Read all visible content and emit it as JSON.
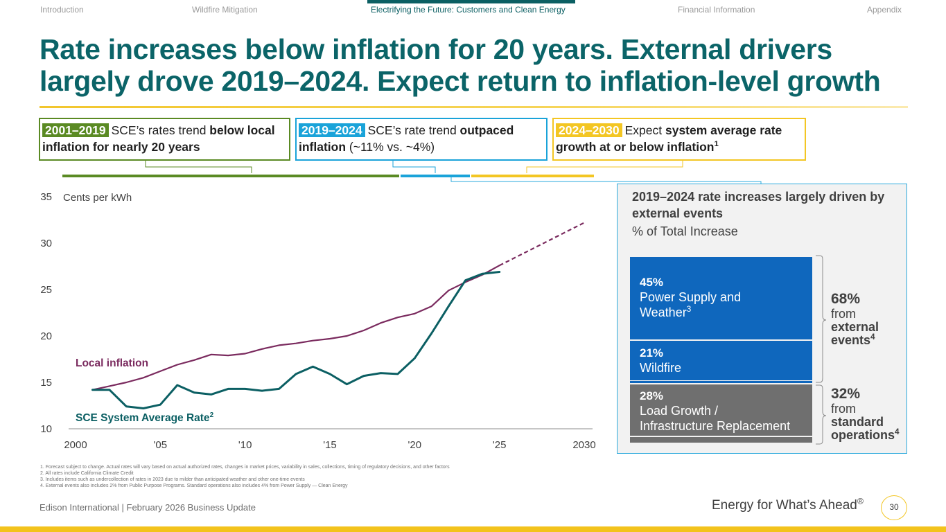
{
  "nav": {
    "items": [
      "Introduction",
      "Wildfire Mitigation",
      "Electrifying the Future: Customers and Clean Energy",
      "Financial Information",
      "Appendix"
    ],
    "active_index": 2
  },
  "title": {
    "line1": "Rate increases below inflation for 20 years. External drivers",
    "line2": "largely drove 2019–2024. Expect return to inflation-level growth"
  },
  "periods": [
    {
      "tag": "2001–2019",
      "pre": "SCE’s rates trend ",
      "bold": "below local inflation for nearly 20 years",
      "post": "",
      "color": "#5a8a23"
    },
    {
      "tag": "2019–2024",
      "pre": "SCE’s rate trend ",
      "bold": "outpaced inflation",
      "post": " (~11% vs. ~4%)",
      "color": "#1aa3d9"
    },
    {
      "tag": "2024–2030",
      "pre": "Expect ",
      "bold": "system average rate growth at or below inflation",
      "sup": "1",
      "color": "#f3c623"
    }
  ],
  "chart_data": {
    "type": "line",
    "ylabel": "Cents per kWh",
    "xlabel": "",
    "ylim": [
      10,
      35
    ],
    "xlim": [
      2000,
      2030
    ],
    "y_ticks": [
      10,
      15,
      20,
      25,
      30,
      35
    ],
    "x_ticks": [
      2000,
      2005,
      2010,
      2015,
      2020,
      2025,
      2030
    ],
    "x_tick_labels": [
      "2000",
      "'05",
      "'10",
      "'15",
      "'20",
      "'25",
      "2030"
    ],
    "series": [
      {
        "name": "Local inflation",
        "color": "#7a2a5e",
        "x": [
          2001,
          2002,
          2003,
          2004,
          2005,
          2006,
          2007,
          2008,
          2009,
          2010,
          2011,
          2012,
          2013,
          2014,
          2015,
          2016,
          2017,
          2018,
          2019,
          2020,
          2021,
          2022,
          2023,
          2024,
          2025
        ],
        "values": [
          14.2,
          14.6,
          15.0,
          15.5,
          16.2,
          16.9,
          17.4,
          18.0,
          17.9,
          18.1,
          18.6,
          19.0,
          19.2,
          19.5,
          19.7,
          20.0,
          20.6,
          21.4,
          22.0,
          22.4,
          23.2,
          24.9,
          25.8,
          26.6,
          27.6
        ]
      },
      {
        "name": "Local inflation forecast",
        "color": "#7a2a5e",
        "dashed": true,
        "x": [
          2025,
          2030
        ],
        "values": [
          27.6,
          32.2
        ]
      },
      {
        "name": "SCE System Average Rate",
        "sup": "2",
        "color": "#0b5f63",
        "x": [
          2001,
          2002,
          2003,
          2004,
          2005,
          2006,
          2007,
          2008,
          2009,
          2010,
          2011,
          2012,
          2013,
          2014,
          2015,
          2016,
          2017,
          2018,
          2019,
          2020,
          2021,
          2022,
          2023,
          2024,
          2025
        ],
        "values": [
          14.2,
          14.2,
          12.4,
          12.2,
          12.6,
          14.7,
          13.9,
          13.7,
          14.3,
          14.3,
          14.1,
          14.3,
          15.9,
          16.7,
          15.9,
          14.8,
          15.7,
          16.0,
          15.9,
          17.6,
          20.3,
          23.2,
          26.0,
          26.7,
          26.9
        ]
      }
    ],
    "annotations": [
      "Local inflation",
      "SCE System Average Rate"
    ]
  },
  "panel": {
    "title": "2019–2024 rate increases largely driven by external events",
    "subtitle": "% of Total Increase",
    "segments": [
      {
        "pct": "45%",
        "label1": "Power Supply and",
        "label2": "Weather",
        "sup": "3",
        "value": 45
      },
      {
        "pct": "21%",
        "label1": "Wildfire",
        "value": 21
      },
      {
        "pct": "28%",
        "label1": "Load Growth /",
        "label2": "Infrastructure Replacement",
        "value": 28
      }
    ],
    "external": {
      "pct": "68%",
      "from": "from",
      "line1": "external",
      "line2": "events",
      "sup": "4"
    },
    "standard": {
      "pct": "32%",
      "from": "from",
      "line1": "standard",
      "line2": "operations",
      "sup": "4"
    }
  },
  "footnotes": [
    "1.   Forecast subject to change. Actual rates will vary based on actual authorized rates, changes in market prices, variability in sales, collections, timing of regulatory decisions, and other factors",
    "2.   All rates include California Climate Credit",
    "3.   Includes items such as undercollection of rates in 2023 due to milder than anticipated weather and other one-time events",
    "4.   External events also includes 2% from Public Purpose Programs. Standard operations also includes 4% from Power Supply — Clean Energy"
  ],
  "footer": {
    "left": "Edison International |  February 2026 Business Update",
    "tagline": "Energy for What’s Ahead",
    "reg": "®",
    "page": "30"
  }
}
